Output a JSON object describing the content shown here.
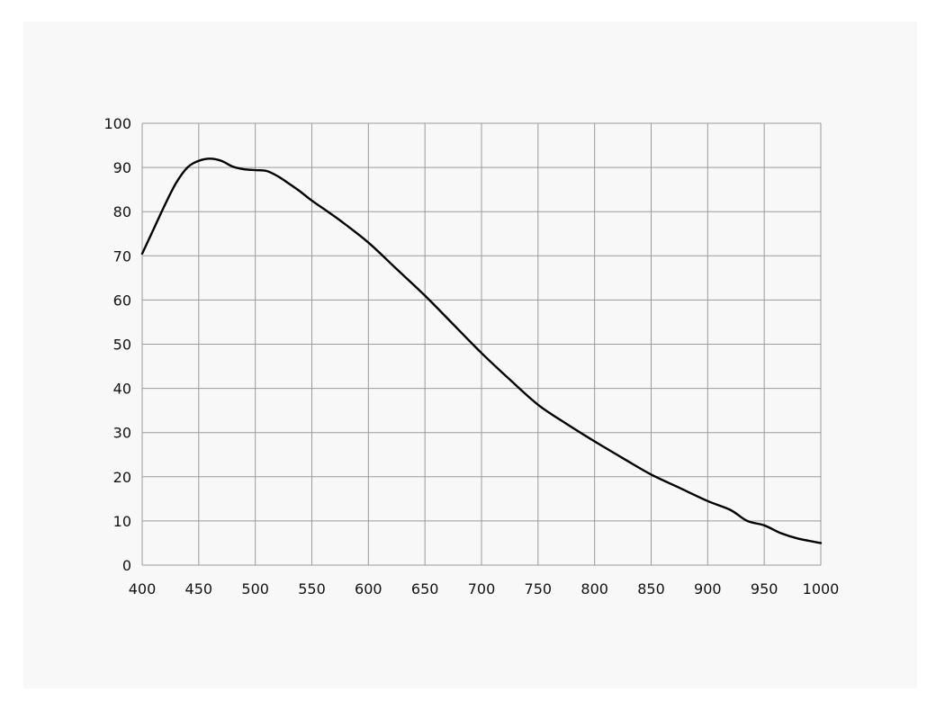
{
  "chart_data": {
    "type": "line",
    "title": "",
    "xlabel": "",
    "ylabel": "",
    "xlim": [
      400,
      1000
    ],
    "ylim": [
      0,
      100
    ],
    "x_ticks": [
      400,
      450,
      500,
      550,
      600,
      650,
      700,
      750,
      800,
      850,
      900,
      950,
      1000
    ],
    "y_ticks": [
      0,
      10,
      20,
      30,
      40,
      50,
      60,
      70,
      80,
      90,
      100
    ],
    "x_tick_labels": [
      "400",
      "450",
      "500",
      "550",
      "600",
      "650",
      "700",
      "750",
      "800",
      "850",
      "900",
      "950",
      "1000"
    ],
    "y_tick_labels": [
      "0",
      "10",
      "20",
      "30",
      "40",
      "50",
      "60",
      "70",
      "80",
      "90",
      "100"
    ],
    "grid": true,
    "legend": "none",
    "series": [
      {
        "color": "#000000",
        "x": [
          400,
          410,
          420,
          430,
          440,
          450,
          460,
          470,
          480,
          490,
          500,
          510,
          520,
          530,
          540,
          550,
          575,
          600,
          625,
          650,
          675,
          700,
          725,
          750,
          775,
          800,
          825,
          850,
          875,
          900,
          920,
          935,
          950,
          965,
          980,
          1000
        ],
        "y": [
          70.5,
          76,
          81.5,
          86.5,
          90,
          91.5,
          92,
          91.5,
          90.2,
          89.6,
          89.4,
          89.2,
          88,
          86.3,
          84.5,
          82.5,
          78,
          73,
          67,
          61,
          54.5,
          48,
          42,
          36.3,
          32,
          28,
          24.2,
          20.5,
          17.5,
          14.5,
          12.5,
          10,
          9,
          7.2,
          6,
          5
        ]
      }
    ]
  }
}
